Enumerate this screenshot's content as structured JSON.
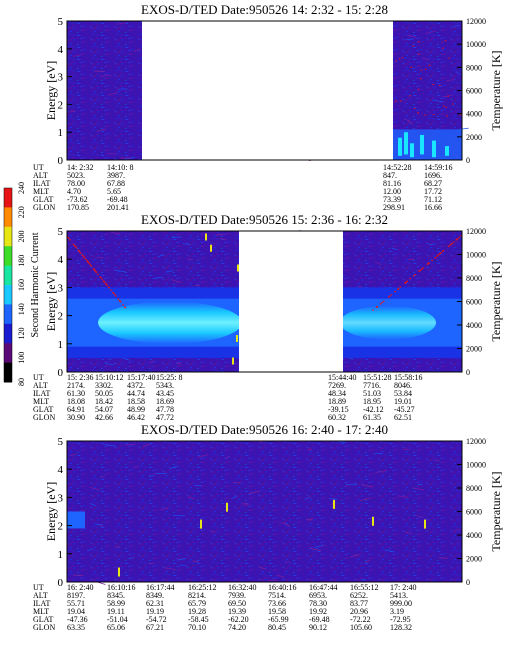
{
  "chart_data": [
    {
      "type": "heatmap",
      "title": "EXOS-D/TED   Date:950526  14: 2:32 - 15: 2:28",
      "ylabel": "Energy [eV]",
      "y2label": "Temperature [K]",
      "ylim": [
        0,
        5
      ],
      "yticks": [
        "0",
        "1",
        "2",
        "3",
        "4",
        "5"
      ],
      "y2lim": [
        0,
        12000
      ],
      "y2ticks": [
        "0",
        "2000",
        "4000",
        "6000",
        "8000",
        "10000",
        "12000"
      ],
      "data_gap": {
        "from": "14:10: 8",
        "to": "14:52:28"
      },
      "orbit_rows": [
        {
          "label": "UT",
          "values": [
            "14: 2:32",
            "14:10: 8",
            "14:52:28",
            "14:59:16"
          ]
        },
        {
          "label": "ALT",
          "values": [
            "5023.",
            "3987.",
            "847.",
            "1696."
          ]
        },
        {
          "label": "ILAT",
          "values": [
            "78.00",
            "67.88",
            "81.16",
            "68.27"
          ]
        },
        {
          "label": "MLT",
          "values": [
            "4.70",
            "5.65",
            "12.00",
            "17.72"
          ]
        },
        {
          "label": "GLAT",
          "values": [
            "-73.62",
            "-69.48",
            "73.39",
            "71.12"
          ]
        },
        {
          "label": "GLON",
          "values": [
            "170.85",
            "201.41",
            "298.91",
            "16.66"
          ]
        }
      ]
    },
    {
      "type": "heatmap",
      "title": "EXOS-D/TED   Date:950526  15: 2:36 - 16: 2:32",
      "ylabel": "Energy [eV]",
      "y2label": "Temperature [K]",
      "ylim": [
        0,
        5
      ],
      "yticks": [
        "0",
        "1",
        "2",
        "3",
        "4",
        "5"
      ],
      "y2lim": [
        0,
        12000
      ],
      "y2ticks": [
        "0",
        "2000",
        "4000",
        "6000",
        "8000",
        "10000",
        "12000"
      ],
      "data_gap": {
        "from": "15:25: 8",
        "to": "15:44:40"
      },
      "orbit_rows": [
        {
          "label": "UT",
          "values": [
            "15: 2:36",
            "15:10:12",
            "15:17:40",
            "15:25: 8",
            "15:44:40",
            "15:51:28",
            "15:58:16"
          ]
        },
        {
          "label": "ALT",
          "values": [
            "2174.",
            "3302.",
            "4372.",
            "5343.",
            "7269.",
            "7716.",
            "8046."
          ]
        },
        {
          "label": "ILAT",
          "values": [
            "61.30",
            "50.05",
            "44.74",
            "43.45",
            "48.34",
            "51.03",
            "53.84"
          ]
        },
        {
          "label": "MLT",
          "values": [
            "18.08",
            "18.42",
            "18.58",
            "18.69",
            "18.89",
            "18.95",
            "19.01"
          ]
        },
        {
          "label": "GLAT",
          "values": [
            "64.91",
            "54.07",
            "48.99",
            "47.78",
            "-39.15",
            "-42.12",
            "-45.27"
          ]
        },
        {
          "label": "GLON",
          "values": [
            "30.90",
            "42.66",
            "46.42",
            "47.72",
            "60.32",
            "61.35",
            "62.51"
          ]
        }
      ]
    },
    {
      "type": "heatmap",
      "title": "EXOS-D/TED   Date:950526  16: 2:40 - 17: 2:40",
      "ylabel": "Energy [eV]",
      "y2label": "Temperature [K]",
      "ylim": [
        0,
        5
      ],
      "yticks": [
        "0",
        "1",
        "2",
        "3",
        "4",
        "5"
      ],
      "y2lim": [
        0,
        12000
      ],
      "y2ticks": [
        "0",
        "2000",
        "4000",
        "6000",
        "8000",
        "10000",
        "12000"
      ],
      "data_gap": null,
      "orbit_rows": [
        {
          "label": "UT",
          "values": [
            "16: 2:40",
            "16:10:16",
            "16:17:44",
            "16:25:12",
            "16:32:40",
            "16:40:16",
            "16:47:44",
            "16:55:12",
            "17: 2:40"
          ]
        },
        {
          "label": "ALT",
          "values": [
            "8197.",
            "8345.",
            "8349.",
            "8214.",
            "7939.",
            "7514.",
            "6953.",
            "6252.",
            "5413."
          ]
        },
        {
          "label": "ILAT",
          "values": [
            "55.71",
            "58.99",
            "62.31",
            "65.79",
            "69.50",
            "73.66",
            "78.30",
            "83.77",
            "999.00"
          ]
        },
        {
          "label": "MLT",
          "values": [
            "19.04",
            "19.11",
            "19.19",
            "19.28",
            "19.39",
            "19.58",
            "19.92",
            "20.96",
            "3.19"
          ]
        },
        {
          "label": "GLAT",
          "values": [
            "-47.36",
            "-51.04",
            "-54.72",
            "-58.45",
            "-62.20",
            "-65.99",
            "-69.48",
            "-72.22",
            "-72.95"
          ]
        },
        {
          "label": "GLON",
          "values": [
            "63.35",
            "65.06",
            "67.21",
            "70.10",
            "74.20",
            "80.45",
            "90.12",
            "105.60",
            "128.32"
          ]
        }
      ]
    }
  ],
  "colorbar": {
    "label": "Second Harmonic Current",
    "ticks": [
      "80",
      "100",
      "120",
      "140",
      "160",
      "180",
      "200",
      "220",
      "240"
    ],
    "range": [
      80,
      240
    ],
    "colors": [
      "#000000",
      "#5a0a78",
      "#1a1ad0",
      "#1e64ff",
      "#19c8ff",
      "#19e6a0",
      "#3cdc28",
      "#e6e614",
      "#ff8c00",
      "#e61414"
    ]
  }
}
